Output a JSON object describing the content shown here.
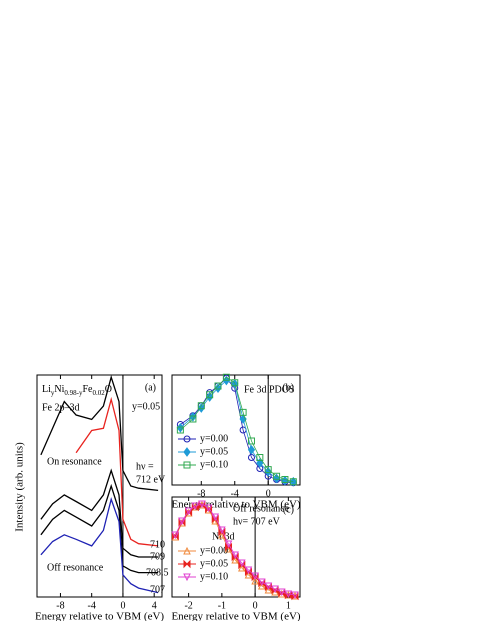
{
  "chart_data": [
    {
      "type": "line",
      "label": "(a)",
      "sample": [
        "Li",
        "y",
        "Ni",
        "0.98-y",
        "Fe",
        "0.02",
        "O"
      ],
      "annotations": [
        "Fe 2p–3d",
        "y=0.05",
        "hν =",
        "On resonance",
        "Off resonance"
      ],
      "ylabel": "Intensity (arb. units)",
      "xlabel": "Energy relative to VBM (eV)",
      "x": [
        -10.5,
        -9,
        -7.5,
        -6,
        -4,
        -2.5,
        -1.5,
        -0.5,
        0,
        1,
        2,
        4.5
      ],
      "xlim": [
        -11,
        5
      ],
      "xticks": [
        -8,
        -4,
        0,
        4
      ],
      "ylim": [
        0,
        10
      ],
      "vline": 0,
      "series": [
        {
          "name": "712 eV",
          "color": "#000000",
          "values": [
            6.4,
            7.6,
            8.8,
            8.2,
            8.0,
            8.6,
            9.9,
            8.8,
            5.7,
            5.0,
            4.9,
            4.8
          ]
        },
        {
          "name": "710",
          "color": "#e8231f",
          "values": [
            null,
            null,
            null,
            6.5,
            7.5,
            7.6,
            8.9,
            7.5,
            3.5,
            2.6,
            2.4,
            2.3
          ]
        },
        {
          "name": "709",
          "color": "#000000",
          "values": [
            3.5,
            4.2,
            4.6,
            4.3,
            3.9,
            4.6,
            5.7,
            4.6,
            2.2,
            1.9,
            1.8,
            1.8
          ]
        },
        {
          "name": "708.5",
          "color": "#000000",
          "values": [
            2.8,
            3.5,
            3.9,
            3.6,
            3.2,
            3.9,
            5.0,
            3.9,
            1.4,
            1.2,
            1.1,
            1.1
          ]
        },
        {
          "name": "707",
          "color": "#1f22b4",
          "values": [
            1.9,
            2.5,
            2.8,
            2.6,
            2.3,
            3.0,
            4.4,
            3.4,
            1.0,
            0.6,
            0.4,
            0.2
          ]
        }
      ]
    },
    {
      "type": "scatter",
      "label": "(b)",
      "annotations": [
        "Fe 3d PDOS"
      ],
      "xlabel": "Energy relative to VBM (eV)",
      "x": [
        -10.5,
        -9,
        -8,
        -7,
        -6,
        -5,
        -4,
        -3,
        -2,
        -1,
        0,
        1,
        2,
        3
      ],
      "xlim": [
        -11.5,
        3.8
      ],
      "xticks": [
        -8,
        -4,
        0
      ],
      "ylim": [
        0,
        1
      ],
      "vline": 0,
      "legend": "lower left",
      "series": [
        {
          "name": "y=0.00",
          "color": "#1f22b4",
          "marker": "circle",
          "filled": false,
          "values": [
            0.55,
            0.63,
            0.72,
            0.84,
            0.9,
            0.97,
            0.88,
            0.5,
            0.25,
            0.15,
            0.08,
            0.05,
            0.03,
            0.02
          ]
        },
        {
          "name": "y=0.05",
          "color": "#1e9bd7",
          "marker": "diamond",
          "filled": true,
          "values": [
            0.52,
            0.62,
            0.7,
            0.8,
            0.88,
            0.95,
            0.92,
            0.6,
            0.32,
            0.2,
            0.12,
            0.06,
            0.04,
            0.03
          ]
        },
        {
          "name": "y=0.10",
          "color": "#2fa84f",
          "marker": "square",
          "filled": false,
          "values": [
            0.5,
            0.6,
            0.72,
            0.82,
            0.9,
            0.98,
            0.93,
            0.66,
            0.4,
            0.25,
            0.14,
            0.08,
            0.05,
            0.03
          ]
        }
      ]
    },
    {
      "type": "scatter",
      "label": "(c)",
      "annotations": [
        "Off resonance",
        "hν= 707 eV",
        "Ni 3d"
      ],
      "xlabel": "Energy relative to VBM (eV)",
      "x": [
        -2.4,
        -2.2,
        -2,
        -1.8,
        -1.6,
        -1.4,
        -1.2,
        -1,
        -0.8,
        -0.6,
        -0.4,
        -0.2,
        0,
        0.2,
        0.4,
        0.6,
        0.8,
        1,
        1.2
      ],
      "xlim": [
        -2.5,
        1.35
      ],
      "xticks": [
        -2,
        -1,
        0,
        1
      ],
      "ylim": [
        0,
        1
      ],
      "vline": 0,
      "legend": "lower left",
      "series": [
        {
          "name": "y=0.00",
          "color": "#f08a3c",
          "marker": "triangle-up",
          "filled": false,
          "values": [
            0.6,
            0.74,
            0.84,
            0.9,
            0.92,
            0.87,
            0.76,
            0.62,
            0.48,
            0.37,
            0.29,
            0.22,
            0.16,
            0.11,
            0.07,
            0.05,
            0.03,
            0.02,
            0.01
          ]
        },
        {
          "name": "y=0.05",
          "color": "#e8231f",
          "marker": "bowtie",
          "filled": true,
          "values": [
            0.61,
            0.75,
            0.85,
            0.9,
            0.92,
            0.88,
            0.78,
            0.65,
            0.5,
            0.4,
            0.32,
            0.25,
            0.2,
            0.14,
            0.1,
            0.07,
            0.04,
            0.02,
            0.01
          ]
        },
        {
          "name": "y=0.10",
          "color": "#e040d0",
          "marker": "triangle-down",
          "filled": false,
          "values": [
            0.62,
            0.76,
            0.86,
            0.91,
            0.93,
            0.89,
            0.8,
            0.67,
            0.53,
            0.42,
            0.34,
            0.27,
            0.21,
            0.15,
            0.11,
            0.08,
            0.05,
            0.03,
            0.02
          ]
        }
      ]
    }
  ]
}
